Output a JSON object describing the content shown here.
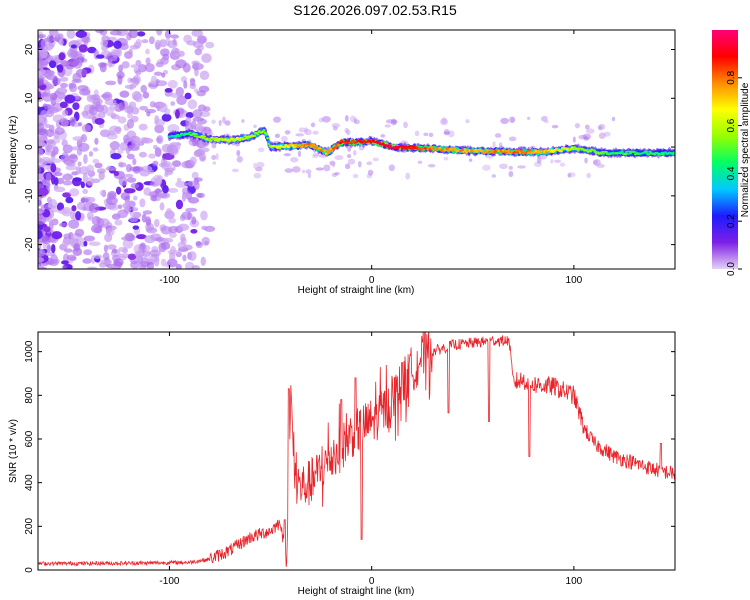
{
  "title": "S126.2026.097.02.53.R15",
  "chart_data": [
    {
      "type": "heatmap",
      "name": "spectrogram",
      "xlabel": "Height of straight line (km)",
      "ylabel": "Frequency (Hz)",
      "xlim": [
        -165,
        150
      ],
      "ylim": [
        -25,
        24
      ],
      "xticks": [
        -100,
        0,
        100
      ],
      "xtick_labels": [
        "-100",
        "0",
        "100"
      ],
      "yticks": [
        -20,
        -10,
        0,
        10,
        20
      ],
      "ytick_labels": [
        "-20",
        "-10",
        "0",
        "10",
        "20"
      ],
      "grid": false,
      "colorbar": {
        "label": "Normalized spectral amplitude",
        "range": [
          0,
          1
        ],
        "ticks": [
          0.0,
          0.2,
          0.4,
          0.6,
          0.8
        ],
        "tick_labels": [
          "0.0",
          "0.2",
          "0.4",
          "0.6",
          "0.8"
        ],
        "colormap": "rainbow",
        "colors": [
          "#e6d2f5",
          "#7e1fe6",
          "#1c1cff",
          "#00c8ff",
          "#00ff64",
          "#96ff00",
          "#ffff00",
          "#ff8c00",
          "#ff0000",
          "#ff0078"
        ]
      },
      "noise_region_x": [
        -165,
        -80
      ],
      "signal_line": [
        {
          "x": -100,
          "freq": 2.2,
          "amp": 0.35
        },
        {
          "x": -90,
          "freq": 2.8,
          "amp": 0.45
        },
        {
          "x": -80,
          "freq": 1.6,
          "amp": 0.55
        },
        {
          "x": -70,
          "freq": 1.4,
          "amp": 0.6
        },
        {
          "x": -60,
          "freq": 2.0,
          "amp": 0.55
        },
        {
          "x": -53,
          "freq": 3.5,
          "amp": 0.5
        },
        {
          "x": -50,
          "freq": 0.0,
          "amp": 0.55
        },
        {
          "x": -40,
          "freq": 0.2,
          "amp": 0.65
        },
        {
          "x": -30,
          "freq": 0.4,
          "amp": 0.75
        },
        {
          "x": -22,
          "freq": -1.2,
          "amp": 0.7
        },
        {
          "x": -15,
          "freq": 1.0,
          "amp": 0.8
        },
        {
          "x": -5,
          "freq": 1.0,
          "amp": 0.85
        },
        {
          "x": 0,
          "freq": 1.2,
          "amp": 0.85
        },
        {
          "x": 10,
          "freq": 0.0,
          "amp": 0.9
        },
        {
          "x": 30,
          "freq": -0.3,
          "amp": 0.75
        },
        {
          "x": 50,
          "freq": -0.8,
          "amp": 0.7
        },
        {
          "x": 70,
          "freq": -1.0,
          "amp": 0.75
        },
        {
          "x": 85,
          "freq": -1.0,
          "amp": 0.7
        },
        {
          "x": 100,
          "freq": -0.3,
          "amp": 0.55
        },
        {
          "x": 115,
          "freq": -1.2,
          "amp": 0.45
        },
        {
          "x": 150,
          "freq": -1.2,
          "amp": 0.4
        }
      ]
    },
    {
      "type": "line",
      "name": "snr",
      "xlabel": "Height of straight line (km)",
      "ylabel": "SNR (10 * v/v)",
      "xlim": [
        -165,
        150
      ],
      "ylim": [
        0,
        1090
      ],
      "xticks": [
        -100,
        0,
        100
      ],
      "xtick_labels": [
        "-100",
        "0",
        "100"
      ],
      "yticks": [
        0,
        200,
        400,
        600,
        800,
        1000
      ],
      "ytick_labels": [
        "0",
        "200",
        "400",
        "600",
        "800",
        "1000"
      ],
      "grid": false,
      "line_color": "#e8242a",
      "series": [
        {
          "name": "SNR",
          "x": [
            -165,
            -140,
            -110,
            -90,
            -80,
            -70,
            -60,
            -50,
            -45,
            -42,
            -40,
            -38,
            -35,
            -30,
            -25,
            -20,
            -15,
            -10,
            -5,
            0,
            5,
            10,
            15,
            20,
            25,
            30,
            40,
            50,
            60,
            68,
            70,
            75,
            80,
            90,
            100,
            105,
            110,
            120,
            130,
            140,
            150
          ],
          "y": [
            30,
            30,
            32,
            35,
            50,
            90,
            150,
            180,
            220,
            20,
            800,
            420,
            380,
            400,
            460,
            520,
            560,
            620,
            650,
            680,
            720,
            780,
            850,
            920,
            980,
            1000,
            1030,
            1040,
            1050,
            1050,
            860,
            870,
            850,
            840,
            800,
            650,
            580,
            520,
            490,
            460,
            440
          ],
          "spikes": [
            {
              "x": -43,
              "y": 230
            },
            {
              "x": -41,
              "y": 830
            },
            {
              "x": -15,
              "y": 780
            },
            {
              "x": -8,
              "y": 880
            },
            {
              "x": -5,
              "y": 140
            },
            {
              "x": 15,
              "y": 950
            },
            {
              "x": 38,
              "y": 720
            },
            {
              "x": 58,
              "y": 680
            },
            {
              "x": 78,
              "y": 520
            },
            {
              "x": 143,
              "y": 580
            }
          ]
        }
      ]
    }
  ]
}
